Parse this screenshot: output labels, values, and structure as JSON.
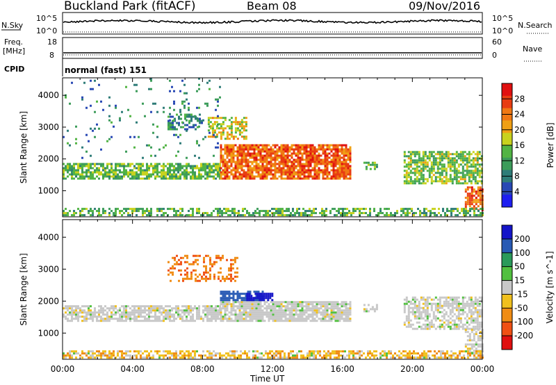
{
  "header": {
    "station": "Buckland Park (fitACF)",
    "beam": "Beam 08",
    "date": "09/Nov/2016"
  },
  "summary": {
    "nsky_label": "N.Sky",
    "nsky_top": "10^5",
    "nsky_bottom": "10^0",
    "nsearch_label": "N.Search",
    "nsearch_top": "10^5",
    "nsearch_bottom": "10^0",
    "freq_label_1": "Freq.",
    "freq_label_2": "[MHz]",
    "freq_top": "18",
    "freq_bottom": "8",
    "nave_label": "Nave",
    "nave_top": "60",
    "nave_bottom": "0",
    "cpid_label": "CPID",
    "cpid_value": "normal (fast) 151"
  },
  "chart_data": [
    {
      "type": "heatmap",
      "name": "power",
      "ylabel": "Slant Range [km]",
      "xlabel": "",
      "ylim": [
        180,
        4550
      ],
      "yticks": [
        "1000",
        "2000",
        "3000",
        "4000"
      ],
      "xlim_hours": [
        0,
        24
      ],
      "colorbar": {
        "label": "Power [dB]",
        "ticks": [
          "4",
          "8",
          "12",
          "16",
          "20",
          "24",
          "28"
        ],
        "range": [
          0,
          32
        ],
        "colors": [
          "#1e1ef0",
          "#2848b4",
          "#2e7c78",
          "#3c9c5a",
          "#52b444",
          "#c8d21e",
          "#f0a014",
          "#f07814",
          "#e83c12",
          "#e01010"
        ]
      },
      "regions": [
        {
          "t0": 0.0,
          "t1": 9.0,
          "r0": 1350,
          "r1": 1850,
          "level": 14,
          "density": 0.75
        },
        {
          "t0": 9.0,
          "t1": 16.5,
          "r0": 1350,
          "r1": 2450,
          "level": 25,
          "density": 0.85
        },
        {
          "t0": 6.0,
          "t1": 8.0,
          "r0": 2900,
          "r1": 3400,
          "level": 9,
          "density": 0.45
        },
        {
          "t0": 8.3,
          "t1": 10.5,
          "r0": 2600,
          "r1": 3300,
          "level": 18,
          "density": 0.55
        },
        {
          "t0": 17.2,
          "t1": 18.0,
          "r0": 1650,
          "r1": 1900,
          "level": 14,
          "density": 0.6
        },
        {
          "t0": 19.5,
          "t1": 24.0,
          "r0": 1200,
          "r1": 2200,
          "level": 15,
          "density": 0.7
        },
        {
          "t0": 23.0,
          "t1": 24.0,
          "r0": 350,
          "r1": 1100,
          "level": 25,
          "density": 0.7
        },
        {
          "t0": 0.0,
          "t1": 24.0,
          "r0": 200,
          "r1": 420,
          "level": 13,
          "density": 0.55
        },
        {
          "t0": 0.0,
          "t1": 9.0,
          "r0": 2000,
          "r1": 4500,
          "level": 9,
          "density": 0.05
        }
      ]
    },
    {
      "type": "heatmap",
      "name": "velocity",
      "ylabel": "Slant Range [km]",
      "xlabel": "Time UT",
      "ylim": [
        180,
        4550
      ],
      "yticks": [
        "1000",
        "2000",
        "3000",
        "4000"
      ],
      "xticks": [
        "00:00",
        "04:00",
        "08:00",
        "12:00",
        "16:00",
        "20:00",
        "00:00"
      ],
      "xlim_hours": [
        0,
        24
      ],
      "colorbar": {
        "label": "Velocity [m s^-1]",
        "ticks": [
          "200",
          "100",
          "50",
          "15",
          "-15",
          "-50",
          "-100",
          "-200"
        ],
        "colors": [
          "#1414c8",
          "#285ab4",
          "#2a9a5a",
          "#52c040",
          "#c8c8c8",
          "#f0c01e",
          "#f08c14",
          "#f05014",
          "#e01010"
        ]
      },
      "regions": [
        {
          "t0": 0.0,
          "t1": 9.0,
          "r0": 1350,
          "r1": 1850,
          "vel": 0,
          "density": 0.7
        },
        {
          "t0": 9.0,
          "t1": 16.5,
          "r0": 1350,
          "r1": 2000,
          "vel": 0,
          "density": 0.85
        },
        {
          "t0": 9.0,
          "t1": 11.5,
          "r0": 2000,
          "r1": 2300,
          "vel": 110,
          "density": 0.75
        },
        {
          "t0": 10.5,
          "t1": 12.0,
          "r0": 2000,
          "r1": 2200,
          "vel": 220,
          "density": 0.8
        },
        {
          "t0": 6.0,
          "t1": 10.0,
          "r0": 2600,
          "r1": 3400,
          "vel": -70,
          "density": 0.35
        },
        {
          "t0": 17.2,
          "t1": 18.0,
          "r0": 1650,
          "r1": 1900,
          "vel": 0,
          "density": 0.6
        },
        {
          "t0": 19.5,
          "t1": 24.0,
          "r0": 1100,
          "r1": 2100,
          "vel": 0,
          "density": 0.6
        },
        {
          "t0": 23.0,
          "t1": 24.0,
          "r0": 350,
          "r1": 1100,
          "vel": 0,
          "density": 0.6
        },
        {
          "t0": 0.0,
          "t1": 24.0,
          "r0": 200,
          "r1": 420,
          "vel": -20,
          "density": 0.6
        }
      ]
    }
  ]
}
